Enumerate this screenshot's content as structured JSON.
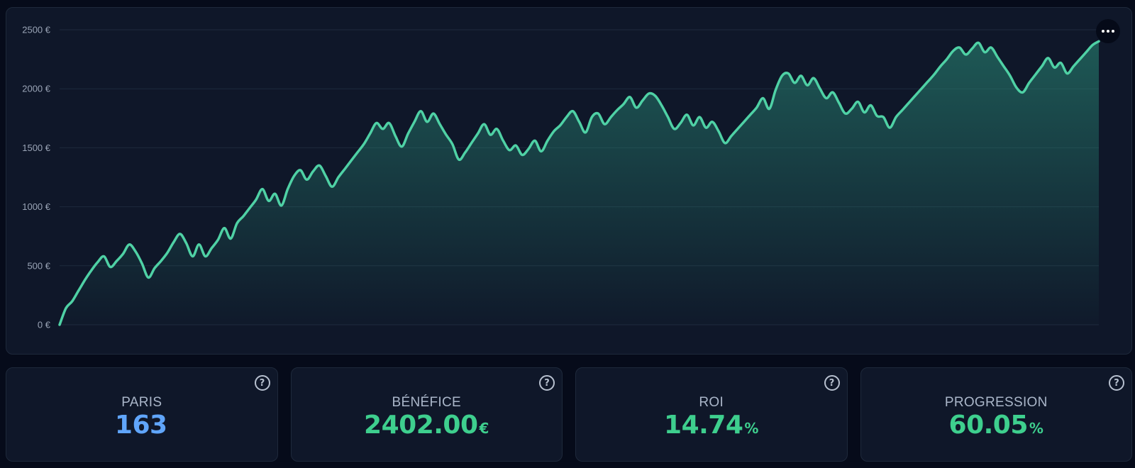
{
  "chart_data": {
    "type": "area",
    "title": "",
    "xlabel": "",
    "ylabel": "",
    "ylim": [
      0,
      2500
    ],
    "y_ticks": [
      "0 €",
      "500 €",
      "1000 €",
      "1500 €",
      "2000 €",
      "2500 €"
    ],
    "y_tick_values": [
      0,
      500,
      1000,
      1500,
      2000,
      2500
    ],
    "grid": true,
    "line_color": "#4fd1a5",
    "fill_color": "#2a8f7a",
    "series": [
      {
        "values": [
          0,
          140,
          200,
          290,
          380,
          460,
          530,
          580,
          490,
          540,
          600,
          680,
          620,
          520,
          400,
          480,
          540,
          610,
          700,
          770,
          690,
          580,
          680,
          580,
          650,
          720,
          820,
          730,
          860,
          920,
          990,
          1060,
          1150,
          1050,
          1110,
          1010,
          1150,
          1260,
          1310,
          1230,
          1300,
          1350,
          1260,
          1170,
          1250,
          1320,
          1390,
          1460,
          1530,
          1620,
          1710,
          1660,
          1710,
          1600,
          1510,
          1620,
          1720,
          1810,
          1720,
          1790,
          1700,
          1610,
          1530,
          1400,
          1460,
          1540,
          1620,
          1700,
          1610,
          1660,
          1560,
          1480,
          1520,
          1440,
          1490,
          1560,
          1470,
          1560,
          1640,
          1690,
          1760,
          1810,
          1720,
          1630,
          1760,
          1790,
          1700,
          1760,
          1820,
          1870,
          1930,
          1840,
          1900,
          1960,
          1940,
          1860,
          1760,
          1660,
          1710,
          1780,
          1690,
          1760,
          1670,
          1720,
          1640,
          1540,
          1600,
          1660,
          1720,
          1780,
          1840,
          1920,
          1830,
          1990,
          2110,
          2130,
          2050,
          2110,
          2030,
          2090,
          2000,
          1920,
          1970,
          1880,
          1790,
          1830,
          1890,
          1800,
          1860,
          1770,
          1760,
          1670,
          1760,
          1820,
          1880,
          1940,
          2000,
          2060,
          2120,
          2190,
          2250,
          2320,
          2350,
          2290,
          2340,
          2390,
          2310,
          2350,
          2270,
          2190,
          2110,
          2010,
          1970,
          2050,
          2120,
          2190,
          2260,
          2180,
          2220,
          2130,
          2190,
          2250,
          2310,
          2370,
          2402
        ]
      }
    ]
  },
  "chart_menu": {
    "icon": "more-horizontal-icon"
  },
  "stats": [
    {
      "label": "PARIS",
      "value": "163",
      "unit": "",
      "color": "#60a5fa",
      "icon": "help-circle-icon",
      "icon_glyph": "?"
    },
    {
      "label": "BÉNÉFICE",
      "value": "2402.00",
      "unit": "€",
      "color": "#3ecf8e",
      "icon": "help-circle-icon",
      "icon_glyph": "?"
    },
    {
      "label": "ROI",
      "value": "14.74",
      "unit": "%",
      "color": "#3ecf8e",
      "icon": "help-circle-icon",
      "icon_glyph": "?"
    },
    {
      "label": "PROGRESSION",
      "value": "60.05",
      "unit": "%",
      "color": "#3ecf8e",
      "icon": "help-circle-icon",
      "icon_glyph": "?"
    }
  ]
}
